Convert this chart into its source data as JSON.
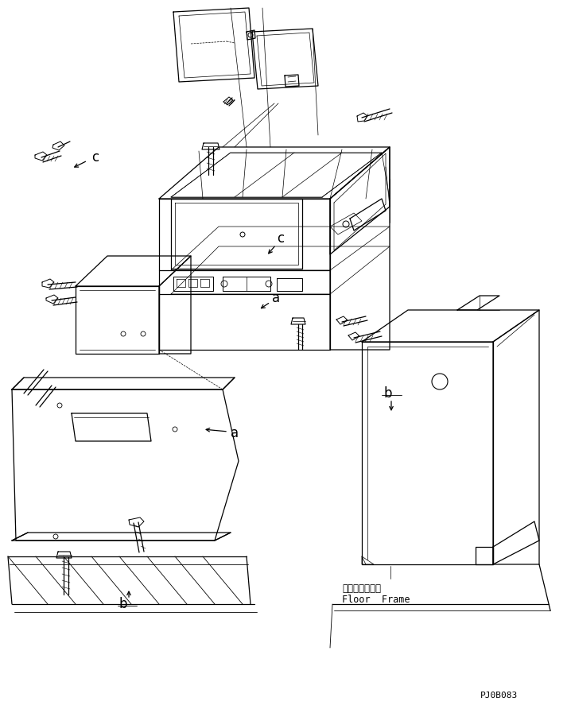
{
  "bg_color": "#ffffff",
  "line_color": "#000000",
  "fig_width": 7.18,
  "fig_height": 8.97,
  "dpi": 100,
  "label_a1": "a",
  "label_a2": "a",
  "label_b1": "b",
  "label_b2": "b",
  "label_c1": "c",
  "label_c2": "c",
  "floor_frame_jp": "フロアフレーム",
  "floor_frame_en": "Floor  Frame",
  "part_number": "PJ0B083",
  "font_size_label": 11,
  "font_size_part": 8,
  "font_size_floor": 8.5,
  "lw_main": 0.9,
  "lw_thin": 0.5
}
